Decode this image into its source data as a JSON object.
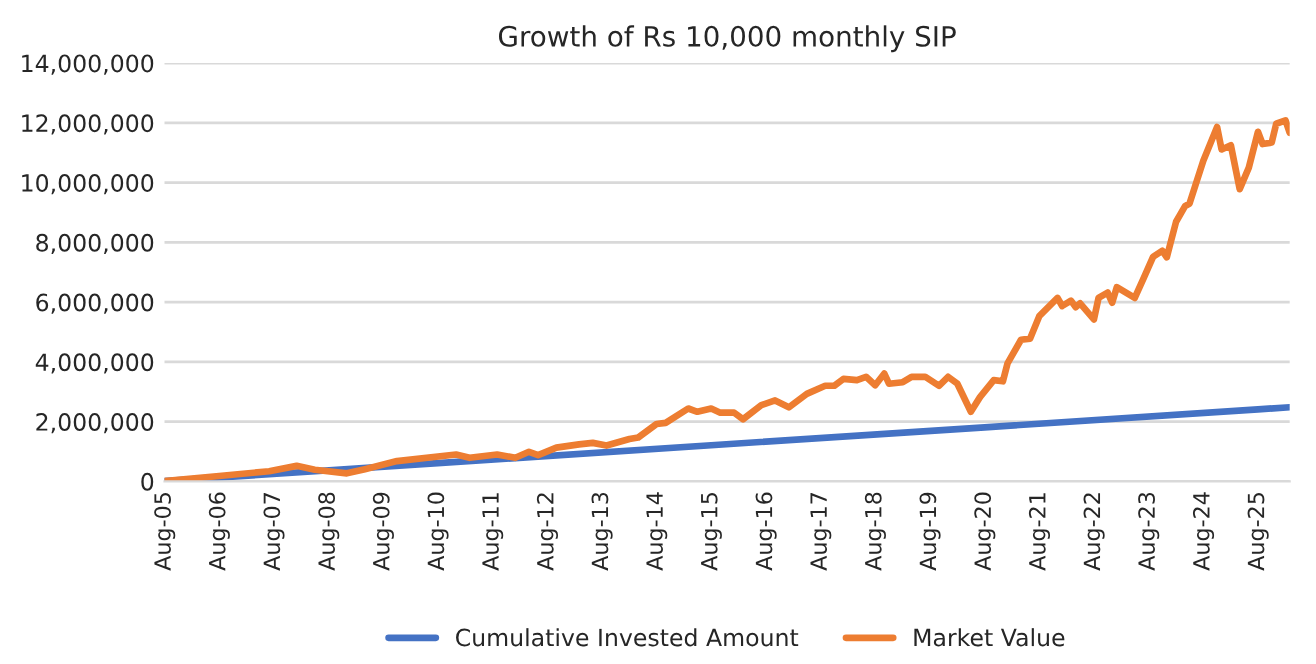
{
  "chart_data": {
    "type": "line",
    "title": "Growth of Rs 10,000 monthly SIP",
    "xlim": [
      "2005-08",
      "2026-03"
    ],
    "xticks": [
      {
        "value": "2005-08",
        "label": "Aug-05"
      },
      {
        "value": "2006-08",
        "label": "Aug-06"
      },
      {
        "value": "2007-08",
        "label": "Aug-07"
      },
      {
        "value": "2008-08",
        "label": "Aug-08"
      },
      {
        "value": "2009-08",
        "label": "Aug-09"
      },
      {
        "value": "2010-08",
        "label": "Aug-10"
      },
      {
        "value": "2011-08",
        "label": "Aug-11"
      },
      {
        "value": "2012-08",
        "label": "Aug-12"
      },
      {
        "value": "2013-08",
        "label": "Aug-13"
      },
      {
        "value": "2014-08",
        "label": "Aug-14"
      },
      {
        "value": "2015-08",
        "label": "Aug-15"
      },
      {
        "value": "2016-08",
        "label": "Aug-16"
      },
      {
        "value": "2017-08",
        "label": "Aug-17"
      },
      {
        "value": "2018-08",
        "label": "Aug-18"
      },
      {
        "value": "2019-08",
        "label": "Aug-19"
      },
      {
        "value": "2020-08",
        "label": "Aug-20"
      },
      {
        "value": "2021-08",
        "label": "Aug-21"
      },
      {
        "value": "2022-08",
        "label": "Aug-22"
      },
      {
        "value": "2023-08",
        "label": "Aug-23"
      },
      {
        "value": "2024-08",
        "label": "Aug-24"
      },
      {
        "value": "2025-08",
        "label": "Aug-25"
      }
    ],
    "ylim": [
      0,
      14000000
    ],
    "yticks": [
      {
        "value": 0,
        "label": "0"
      },
      {
        "value": 2000000,
        "label": "2,000,000"
      },
      {
        "value": 4000000,
        "label": "4,000,000"
      },
      {
        "value": 6000000,
        "label": "6,000,000"
      },
      {
        "value": 8000000,
        "label": "8,000,000"
      },
      {
        "value": 10000000,
        "label": "10,000,000"
      },
      {
        "value": 12000000,
        "label": "12,000,000"
      },
      {
        "value": 14000000,
        "label": "14,000,000"
      }
    ],
    "grid": "y",
    "legend": "bottom",
    "marker": "none",
    "line_style": "solid",
    "series": [
      {
        "name": "Cumulative Invested Amount",
        "color": "#4472c4",
        "x": [
          "2005-08",
          "2010-08",
          "2015-08",
          "2020-08",
          "2025-08",
          "2026-03"
        ],
        "values": [
          10000,
          610000,
          1210000,
          1810000,
          2410000,
          2480000
        ]
      },
      {
        "name": "Market Value",
        "color": "#ed7d31",
        "x": [
          "2005-08",
          "2006-08",
          "2007-07",
          "2008-01",
          "2008-05",
          "2008-12",
          "2009-04",
          "2009-11",
          "2010-12",
          "2011-03",
          "2011-09",
          "2012-01",
          "2012-04",
          "2012-06",
          "2012-10",
          "2013-03",
          "2013-06",
          "2013-09",
          "2014-02",
          "2014-04",
          "2014-08",
          "2014-10",
          "2015-03",
          "2015-05",
          "2015-08",
          "2015-10",
          "2016-01",
          "2016-03",
          "2016-07",
          "2016-10",
          "2017-01",
          "2017-05",
          "2017-09",
          "2017-11",
          "2018-01",
          "2018-04",
          "2018-06",
          "2018-08",
          "2018-10",
          "2018-11",
          "2019-02",
          "2019-04",
          "2019-07",
          "2019-10",
          "2019-12",
          "2020-02",
          "2020-05",
          "2020-07",
          "2020-10",
          "2020-12",
          "2021-01",
          "2021-04",
          "2021-06",
          "2021-08",
          "2021-12",
          "2022-01",
          "2022-03",
          "2022-04",
          "2022-05",
          "2022-08",
          "2022-09",
          "2022-11",
          "2022-12",
          "2023-01",
          "2023-05",
          "2023-07",
          "2023-09",
          "2023-11",
          "2023-12",
          "2024-02",
          "2024-04",
          "2024-05",
          "2024-08",
          "2024-11",
          "2024-12",
          "2025-02",
          "2025-04",
          "2025-06",
          "2025-08",
          "2025-09",
          "2025-11",
          "2025-12",
          "2026-02",
          "2026-03"
        ],
        "values": [
          10000,
          180000,
          340000,
          520000,
          390000,
          270000,
          410000,
          680000,
          900000,
          790000,
          900000,
          790000,
          990000,
          880000,
          1130000,
          1240000,
          1290000,
          1200000,
          1420000,
          1470000,
          1920000,
          1960000,
          2440000,
          2330000,
          2440000,
          2300000,
          2300000,
          2080000,
          2550000,
          2710000,
          2480000,
          2930000,
          3200000,
          3200000,
          3430000,
          3390000,
          3500000,
          3220000,
          3610000,
          3270000,
          3320000,
          3500000,
          3500000,
          3200000,
          3500000,
          3270000,
          2330000,
          2820000,
          3390000,
          3350000,
          3950000,
          4740000,
          4780000,
          5530000,
          6140000,
          5870000,
          6050000,
          5830000,
          5960000,
          5420000,
          6140000,
          6320000,
          5980000,
          6500000,
          6140000,
          6820000,
          7520000,
          7720000,
          7500000,
          8690000,
          9210000,
          9300000,
          10730000,
          11860000,
          11110000,
          11250000,
          9780000,
          10500000,
          11700000,
          11290000,
          11340000,
          11970000,
          12080000,
          11670000
        ]
      }
    ]
  }
}
